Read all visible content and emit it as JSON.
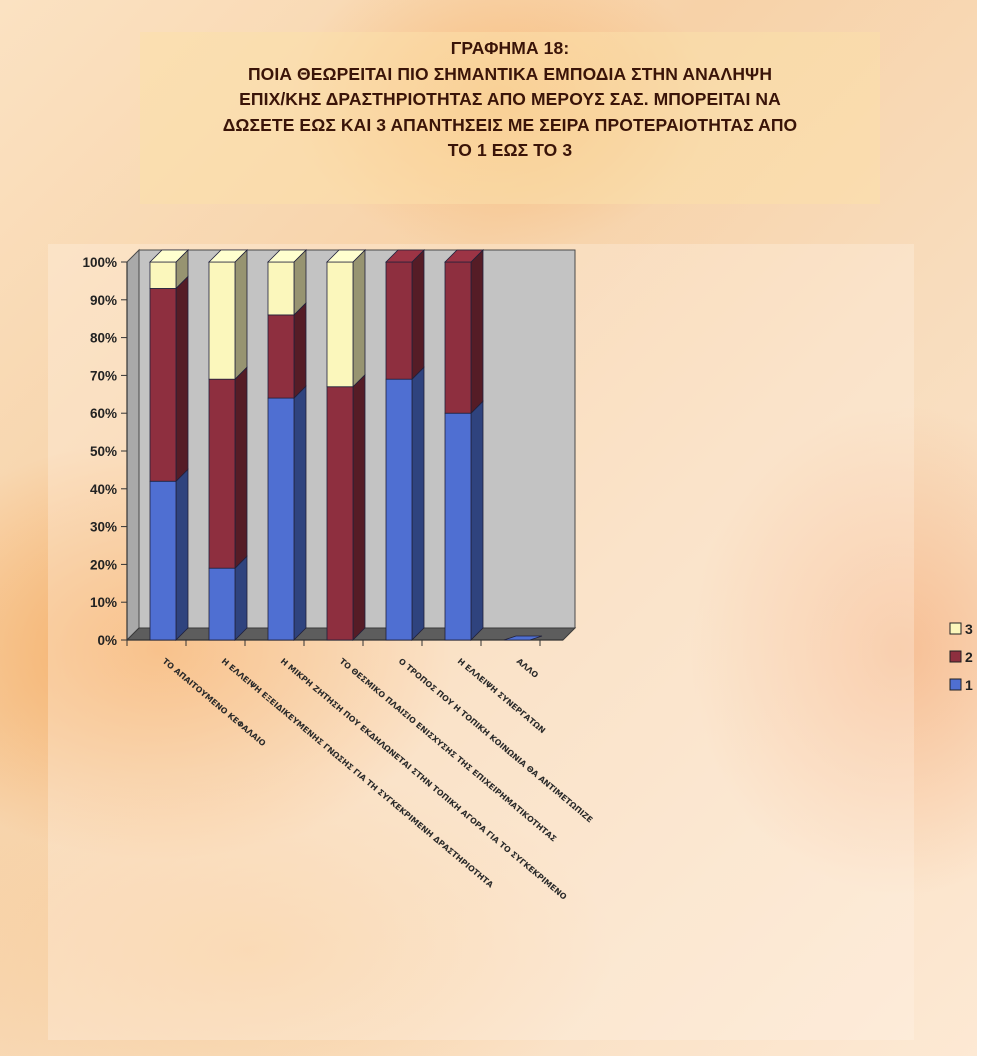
{
  "chart_data": {
    "type": "bar",
    "stacked": "percent",
    "title": "ΓΡΑΦΗΜΑ 18:\nΠΟΙΑ ΘΕΩΡΕΙΤΑΙ ΠΙΟ ΣΗΜΑΝΤΙΚΑ ΕΜΠΟΔΙΑ ΣΤΗΝ ΑΝΑΛΗΨΗ\nΕΠΙΧ/ΚΗΣ ΔΡΑΣΤΗΡΙΟΤΗΤΑΣ ΑΠΟ ΜΕΡΟΥΣ ΣΑΣ. ΜΠΟΡΕΙΤΑΙ ΝΑ\nΔΩΣΕΤΕ ΕΩΣ ΚΑΙ 3 ΑΠΑΝΤΗΣΕΙΣ ΜΕ ΣΕΙΡΑ ΠΡΟΤΕΡΑΙΟΤΗΤΑΣ ΑΠΟ\nΤΟ 1 ΕΩΣ ΤΟ 3",
    "categories": [
      "ΤΟ ΑΠΑΙΤΟΥΜΕΝΟ ΚΕΦΑΛΑΙΟ",
      "Η ΕΛΛΕΙΨΗ ΕΞΕΙΔΙΚΕΥΜΕΝΗΣ ΓΝΩΣΗΣ ΓΙΑ ΤΗ ΣΥΓΚΕΚΡΙΜΕΝΗ ΔΡΑΣΤΗΡΙΟΤΗΤΑ",
      "Η ΜΙΚΡΗ ΖΗΤΗΣΗ ΠΟΥ ΕΚΔΗΛΩΝΕΤΑΙ ΣΤΗΝ ΤΟΠΙΚΗ ΑΓΟΡΑ ΓΙΑ ΤΟ ΣΥΓΚΕΚΡΙΜΕΝΟ",
      "ΤΟ ΘΕΣΜΙΚΟ ΠΛΑΙΣΙΟ ΕΝΙΣΧΥΣΗΣ ΤΗΣ ΕΠΙΧΕΙΡΗΜΑΤΙΚΟΤΗΤΑΣ",
      "Ο ΤΡΟΠΟΣ ΠΟΥ Η ΤΟΠΙΚΗ ΚΟΙΝΩΝΙΑ ΘΑ ΑΝΤΙΜΕΤΩΠΙΖΕ",
      "Η ΕΛΛΕΙΨΗ ΣΥΝΕΡΓΑΤΩΝ",
      "ΑΛΛΟ"
    ],
    "series": [
      {
        "name": "1",
        "color": "#4f6fd2",
        "values": [
          42,
          19,
          64,
          0,
          69,
          60,
          0
        ]
      },
      {
        "name": "2",
        "color": "#8e2f3f",
        "values": [
          51,
          50,
          22,
          67,
          31,
          40,
          0
        ]
      },
      {
        "name": "3",
        "color": "#fbf7bc",
        "values": [
          7,
          31,
          14,
          33,
          0,
          0,
          0
        ]
      }
    ],
    "yticks": [
      "0%",
      "10%",
      "20%",
      "30%",
      "40%",
      "50%",
      "60%",
      "70%",
      "80%",
      "90%",
      "100%"
    ],
    "ylim": [
      0,
      100
    ],
    "grid": false,
    "legend": "right",
    "legend_order": [
      "3",
      "2",
      "1"
    ],
    "style": "3d"
  }
}
